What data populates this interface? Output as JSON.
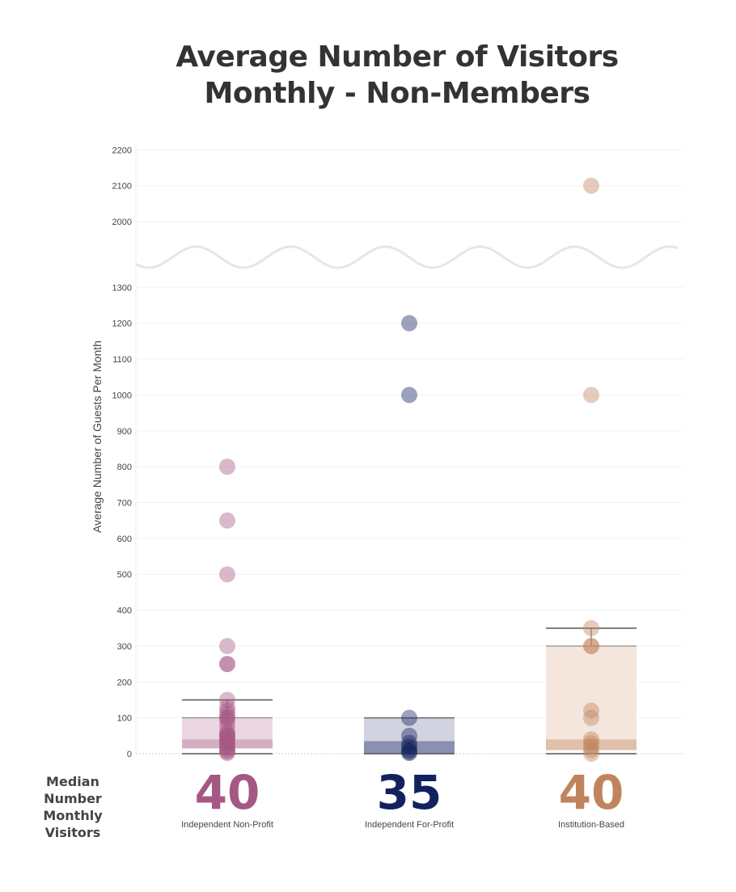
{
  "chart_data": {
    "type": "scatter",
    "title_lines": [
      "Average Number of Visitors",
      "Monthly - Non-Members"
    ],
    "ylabel": "Average Number of Guests Per Month",
    "median_label_lines": [
      "Median Number",
      "Monthly Visitors"
    ],
    "axis_break": {
      "lower_max": 1300,
      "upper_min": 2000
    },
    "lower_ticks": [
      0,
      100,
      200,
      300,
      400,
      500,
      600,
      700,
      800,
      900,
      1000,
      1100,
      1200,
      1300
    ],
    "upper_ticks": [
      2000,
      2100,
      2200
    ],
    "categories": [
      "Independent Non-Profit",
      "Independent For-Profit",
      "Institution-Based"
    ],
    "medians": [
      40,
      35,
      40
    ],
    "series": [
      {
        "category": "Independent Non-Profit",
        "color": "#a55883",
        "box_fill": "#ead6e1",
        "median_band_fill": "#d6aec4",
        "box": {
          "q1": 15,
          "median": 40,
          "q3": 100,
          "whisker_low": 0,
          "whisker_high": 150
        },
        "points": [
          800,
          650,
          500,
          300,
          250,
          250,
          150,
          130,
          120,
          110,
          100,
          100,
          90,
          75,
          60,
          55,
          50,
          50,
          45,
          40,
          35,
          30,
          25,
          20,
          15,
          10,
          5,
          2
        ]
      },
      {
        "category": "Independent For-Profit",
        "color": "#12225e",
        "box_fill": "#d1d3e0",
        "median_band_fill": "#8b8fb0",
        "box": {
          "q1": 0,
          "median": 35,
          "q3": 100,
          "whisker_low": 0,
          "whisker_high": 100
        },
        "points": [
          1200,
          1000,
          100,
          50,
          30,
          20,
          10,
          5,
          2
        ]
      },
      {
        "category": "Institution-Based",
        "color": "#c0845d",
        "box_fill": "#f4e6dd",
        "median_band_fill": "#e0c0a9",
        "box": {
          "q1": 10,
          "median": 40,
          "q3": 300,
          "whisker_low": 0,
          "whisker_high": 350
        },
        "points": [
          2100,
          1000,
          350,
          300,
          300,
          120,
          100,
          40,
          30,
          20,
          10,
          0
        ]
      }
    ]
  }
}
